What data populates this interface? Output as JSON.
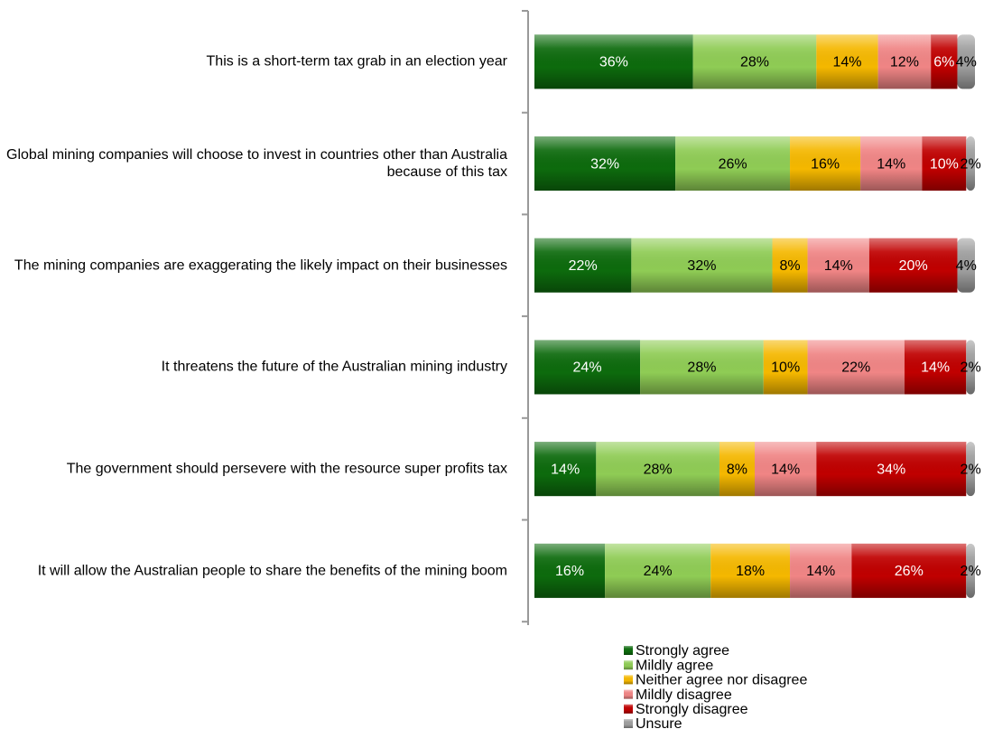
{
  "chart_data": {
    "type": "stacked-bar-horizontal",
    "categories": [
      "This is a short-term tax grab in an election year",
      "Global mining companies will choose to invest in countries other than Australia because of this tax",
      "The mining companies are exaggerating the likely impact on their businesses",
      "It threatens the future of the Australian mining industry",
      "The government should persevere with the resource super profits tax",
      "It will allow the Australian people to share the benefits of the mining boom"
    ],
    "xlim": [
      0,
      100
    ],
    "series": [
      {
        "name": "Strongly agree",
        "color": "#0d6b0d",
        "values": [
          36,
          32,
          22,
          24,
          14,
          16
        ],
        "value_labels": [
          "36%",
          "32%",
          "22%",
          "24%",
          "14%",
          "16%"
        ]
      },
      {
        "name": "Mildly agree",
        "color": "#8fcc55",
        "values": [
          28,
          26,
          32,
          28,
          28,
          24
        ],
        "value_labels": [
          "28%",
          "26%",
          "32%",
          "28%",
          "28%",
          "24%"
        ]
      },
      {
        "name": "Neither agree nor disagree",
        "color": "#f5b800",
        "values": [
          14,
          16,
          8,
          10,
          8,
          18
        ],
        "value_labels": [
          "14%",
          "16%",
          "8%",
          "10%",
          "8%",
          "18%"
        ]
      },
      {
        "name": "Mildly disagree",
        "color": "#f08585",
        "values": [
          12,
          14,
          14,
          22,
          14,
          14
        ],
        "value_labels": [
          "12%",
          "14%",
          "14%",
          "22%",
          "14%",
          "14%"
        ]
      },
      {
        "name": "Strongly disagree",
        "color": "#c00000",
        "values": [
          6,
          10,
          20,
          14,
          34,
          26
        ],
        "value_labels": [
          "6%",
          "10%",
          "20%",
          "14%",
          "34%",
          "26%"
        ]
      },
      {
        "name": "Unsure",
        "color": "#9e9e9e",
        "values": [
          4,
          2,
          4,
          2,
          2,
          2
        ],
        "value_labels": [
          "4%",
          "2%",
          "4%",
          "2%",
          "2%",
          "2%"
        ]
      }
    ],
    "legend": "bottom"
  }
}
